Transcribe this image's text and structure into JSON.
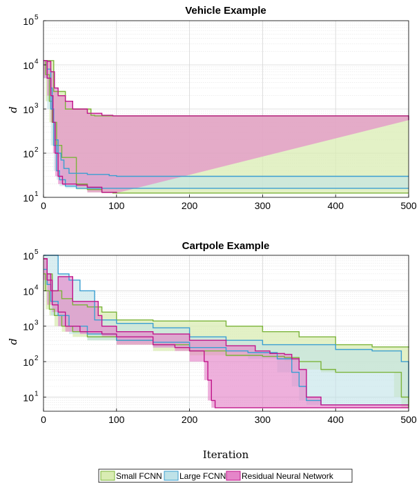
{
  "colors": {
    "small_fill": "#d9ecb3",
    "small_line": "#7bb33a",
    "large_fill": "#bfe2e8",
    "large_line": "#3a9ed1",
    "resnet_fill": "#e585c9",
    "resnet_line": "#c0158a"
  },
  "chart_data": [
    {
      "type": "area",
      "title": "Vehicle Example",
      "xlabel": "",
      "ylabel": "d",
      "xlim": [
        0,
        500
      ],
      "ylim_exp": [
        1,
        5
      ],
      "yscale": "log",
      "grid": true,
      "xticks": [
        "0",
        "100",
        "200",
        "300",
        "400",
        "500"
      ],
      "yticks": [
        "10",
        "10",
        "10",
        "10",
        "10"
      ],
      "ytick_exps": [
        "1",
        "2",
        "3",
        "4",
        "5"
      ],
      "series": [
        {
          "key": "small",
          "upper": [
            [
              0,
              12500
            ],
            [
              5,
              12500
            ],
            [
              10,
              12500
            ],
            [
              14,
              2500
            ],
            [
              30,
              1000
            ],
            [
              60,
              1000
            ],
            [
              65,
              720
            ],
            [
              70,
              700
            ],
            [
              500,
              700
            ]
          ],
          "lower": [
            [
              0,
              12500
            ],
            [
              3,
              6000
            ],
            [
              8,
              1500
            ],
            [
              12,
              500
            ],
            [
              18,
              150
            ],
            [
              25,
              80
            ],
            [
              45,
              20
            ],
            [
              60,
              15
            ],
            [
              80,
              13
            ],
            [
              95,
              12.5
            ],
            [
              500,
              12.5
            ]
          ]
        },
        {
          "key": "large",
          "upper": [
            [
              0,
              12500
            ],
            [
              5,
              8000
            ],
            [
              10,
              3000
            ],
            [
              12,
              1000
            ],
            [
              14,
              500
            ],
            [
              16,
              200
            ],
            [
              20,
              100
            ],
            [
              24,
              70
            ],
            [
              28,
              45
            ],
            [
              35,
              35
            ],
            [
              60,
              33
            ],
            [
              90,
              31
            ],
            [
              100,
              30
            ],
            [
              500,
              30
            ]
          ],
          "lower": [
            [
              0,
              12500
            ],
            [
              5,
              5000
            ],
            [
              10,
              1000
            ],
            [
              14,
              150
            ],
            [
              18,
              40
            ],
            [
              22,
              25
            ],
            [
              30,
              18
            ],
            [
              45,
              16
            ],
            [
              60,
              16
            ],
            [
              500,
              16
            ]
          ]
        },
        {
          "key": "resnet",
          "upper": [
            [
              0,
              12500
            ],
            [
              5,
              12000
            ],
            [
              10,
              7000
            ],
            [
              15,
              3000
            ],
            [
              20,
              2000
            ],
            [
              30,
              1500
            ],
            [
              40,
              1000
            ],
            [
              60,
              800
            ],
            [
              80,
              720
            ],
            [
              95,
              700
            ],
            [
              500,
              560
            ]
          ],
          "lower": [
            [
              0,
              12500
            ],
            [
              5,
              5000
            ],
            [
              10,
              2000
            ],
            [
              13,
              500
            ],
            [
              16,
              100
            ],
            [
              20,
              30
            ],
            [
              26,
              20
            ],
            [
              45,
              19
            ],
            [
              60,
              17
            ],
            [
              80,
              13
            ],
            [
              100,
              12.5
            ]
          ]
        }
      ]
    },
    {
      "type": "area",
      "title": "Cartpole Example",
      "xlabel": "Iteration",
      "ylabel": "d",
      "xlim": [
        0,
        500
      ],
      "ylim_exp": [
        0.6,
        5
      ],
      "yscale": "log",
      "grid": true,
      "xticks": [
        "0",
        "100",
        "200",
        "300",
        "400",
        "500"
      ],
      "yticks": [
        "10",
        "10",
        "10",
        "10",
        "10"
      ],
      "ytick_exps": [
        "1",
        "2",
        "3",
        "4",
        "5"
      ],
      "series": [
        {
          "key": "small",
          "upper": [
            [
              0,
              80000
            ],
            [
              5,
              30000
            ],
            [
              12,
              10000
            ],
            [
              25,
              6000
            ],
            [
              40,
              4000
            ],
            [
              60,
              3500
            ],
            [
              80,
              2500
            ],
            [
              100,
              1500
            ],
            [
              150,
              1400
            ],
            [
              250,
              1000
            ],
            [
              300,
              700
            ],
            [
              350,
              500
            ],
            [
              400,
              300
            ],
            [
              450,
              260
            ],
            [
              500,
              250
            ]
          ],
          "lower": [
            [
              0,
              30000
            ],
            [
              3,
              10000
            ],
            [
              8,
              3000
            ],
            [
              15,
              2000
            ],
            [
              25,
              1000
            ],
            [
              40,
              700
            ],
            [
              60,
              500
            ],
            [
              100,
              400
            ],
            [
              150,
              300
            ],
            [
              200,
              200
            ],
            [
              250,
              150
            ],
            [
              300,
              140
            ],
            [
              330,
              130
            ],
            [
              350,
              100
            ],
            [
              380,
              60
            ],
            [
              400,
              50
            ],
            [
              480,
              50
            ],
            [
              490,
              10
            ],
            [
              500,
              5
            ]
          ]
        },
        {
          "key": "large",
          "upper": [
            [
              0,
              100000
            ],
            [
              5,
              100000
            ],
            [
              12,
              100000
            ],
            [
              20,
              30000
            ],
            [
              35,
              20000
            ],
            [
              50,
              10000
            ],
            [
              70,
              1500
            ],
            [
              100,
              1200
            ],
            [
              150,
              900
            ],
            [
              200,
              500
            ],
            [
              250,
              400
            ],
            [
              300,
              300
            ],
            [
              400,
              220
            ],
            [
              450,
              200
            ],
            [
              480,
              200
            ],
            [
              490,
              100
            ],
            [
              500,
              10
            ]
          ],
          "lower": [
            [
              0,
              40000
            ],
            [
              5,
              15000
            ],
            [
              10,
              5000
            ],
            [
              20,
              2000
            ],
            [
              35,
              1000
            ],
            [
              60,
              600
            ],
            [
              100,
              400
            ],
            [
              150,
              350
            ],
            [
              200,
              250
            ],
            [
              250,
              200
            ],
            [
              280,
              180
            ],
            [
              320,
              120
            ],
            [
              340,
              50
            ],
            [
              350,
              20
            ],
            [
              360,
              8
            ],
            [
              380,
              6
            ],
            [
              500,
              6
            ]
          ]
        },
        {
          "key": "resnet",
          "upper": [
            [
              0,
              80000
            ],
            [
              5,
              30000
            ],
            [
              10,
              10000
            ],
            [
              20,
              25000
            ],
            [
              35,
              25000
            ],
            [
              40,
              5000
            ],
            [
              60,
              5000
            ],
            [
              70,
              5000
            ],
            [
              75,
              2000
            ],
            [
              80,
              1000
            ],
            [
              100,
              700
            ],
            [
              150,
              600
            ],
            [
              200,
              400
            ],
            [
              250,
              280
            ],
            [
              290,
              200
            ],
            [
              310,
              170
            ],
            [
              330,
              160
            ],
            [
              340,
              120
            ],
            [
              350,
              60
            ],
            [
              360,
              10
            ],
            [
              380,
              6
            ],
            [
              500,
              6
            ]
          ],
          "lower": [
            [
              0,
              80000
            ],
            [
              5,
              20000
            ],
            [
              12,
              4000
            ],
            [
              20,
              2500
            ],
            [
              30,
              1000
            ],
            [
              50,
              700
            ],
            [
              80,
              600
            ],
            [
              100,
              500
            ],
            [
              150,
              300
            ],
            [
              180,
              250
            ],
            [
              200,
              200
            ],
            [
              220,
              100
            ],
            [
              225,
              30
            ],
            [
              230,
              8
            ],
            [
              235,
              5
            ],
            [
              500,
              5
            ]
          ]
        }
      ]
    }
  ],
  "legend": {
    "position": "bottom",
    "items": [
      {
        "key": "small",
        "label": "Small FCNN"
      },
      {
        "key": "large",
        "label": "Large FCNN"
      },
      {
        "key": "resnet",
        "label": "Residual Neural Network"
      }
    ]
  }
}
